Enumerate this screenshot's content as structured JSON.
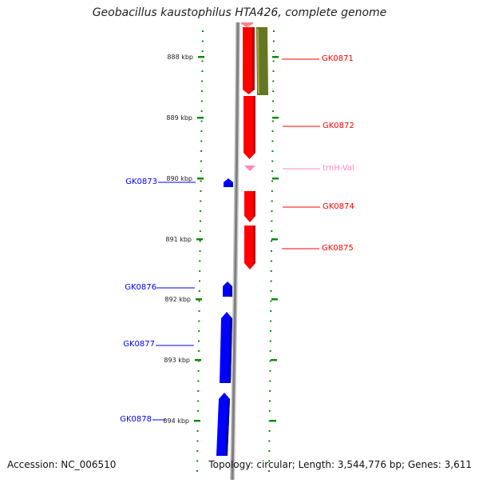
{
  "title": "Geobacillus kaustophilus HTA426, complete genome",
  "footer": {
    "accession": "Accession: NC_006510",
    "summary": "Topology: circular; Length: 3,544,776 bp; Genes: 3,611"
  },
  "colors": {
    "forward_gene": "#ff0000",
    "reverse_gene": "#0000ff",
    "trna": "#ff88bb",
    "annotation": "#667722",
    "tick": "#118811",
    "backbone": "#808080"
  },
  "scale": {
    "unit": "kbp",
    "tick_labels": [
      "888 kbp",
      "889 kbp",
      "890 kbp",
      "891 kbp",
      "892 kbp",
      "893 kbp",
      "894 kbp"
    ]
  },
  "features": [
    {
      "label": "GK0871",
      "strand": "forward",
      "type": "gene"
    },
    {
      "label": "GK0872",
      "strand": "forward",
      "type": "gene"
    },
    {
      "label": "trnH-Val",
      "strand": "forward",
      "type": "tRNA"
    },
    {
      "label": "GK0874",
      "strand": "forward",
      "type": "gene"
    },
    {
      "label": "GK0875",
      "strand": "forward",
      "type": "gene"
    },
    {
      "label": "GK0873",
      "strand": "reverse",
      "type": "gene"
    },
    {
      "label": "GK0876",
      "strand": "reverse",
      "type": "gene"
    },
    {
      "label": "GK0877",
      "strand": "reverse",
      "type": "gene"
    },
    {
      "label": "GK0878",
      "strand": "reverse",
      "type": "gene"
    }
  ]
}
